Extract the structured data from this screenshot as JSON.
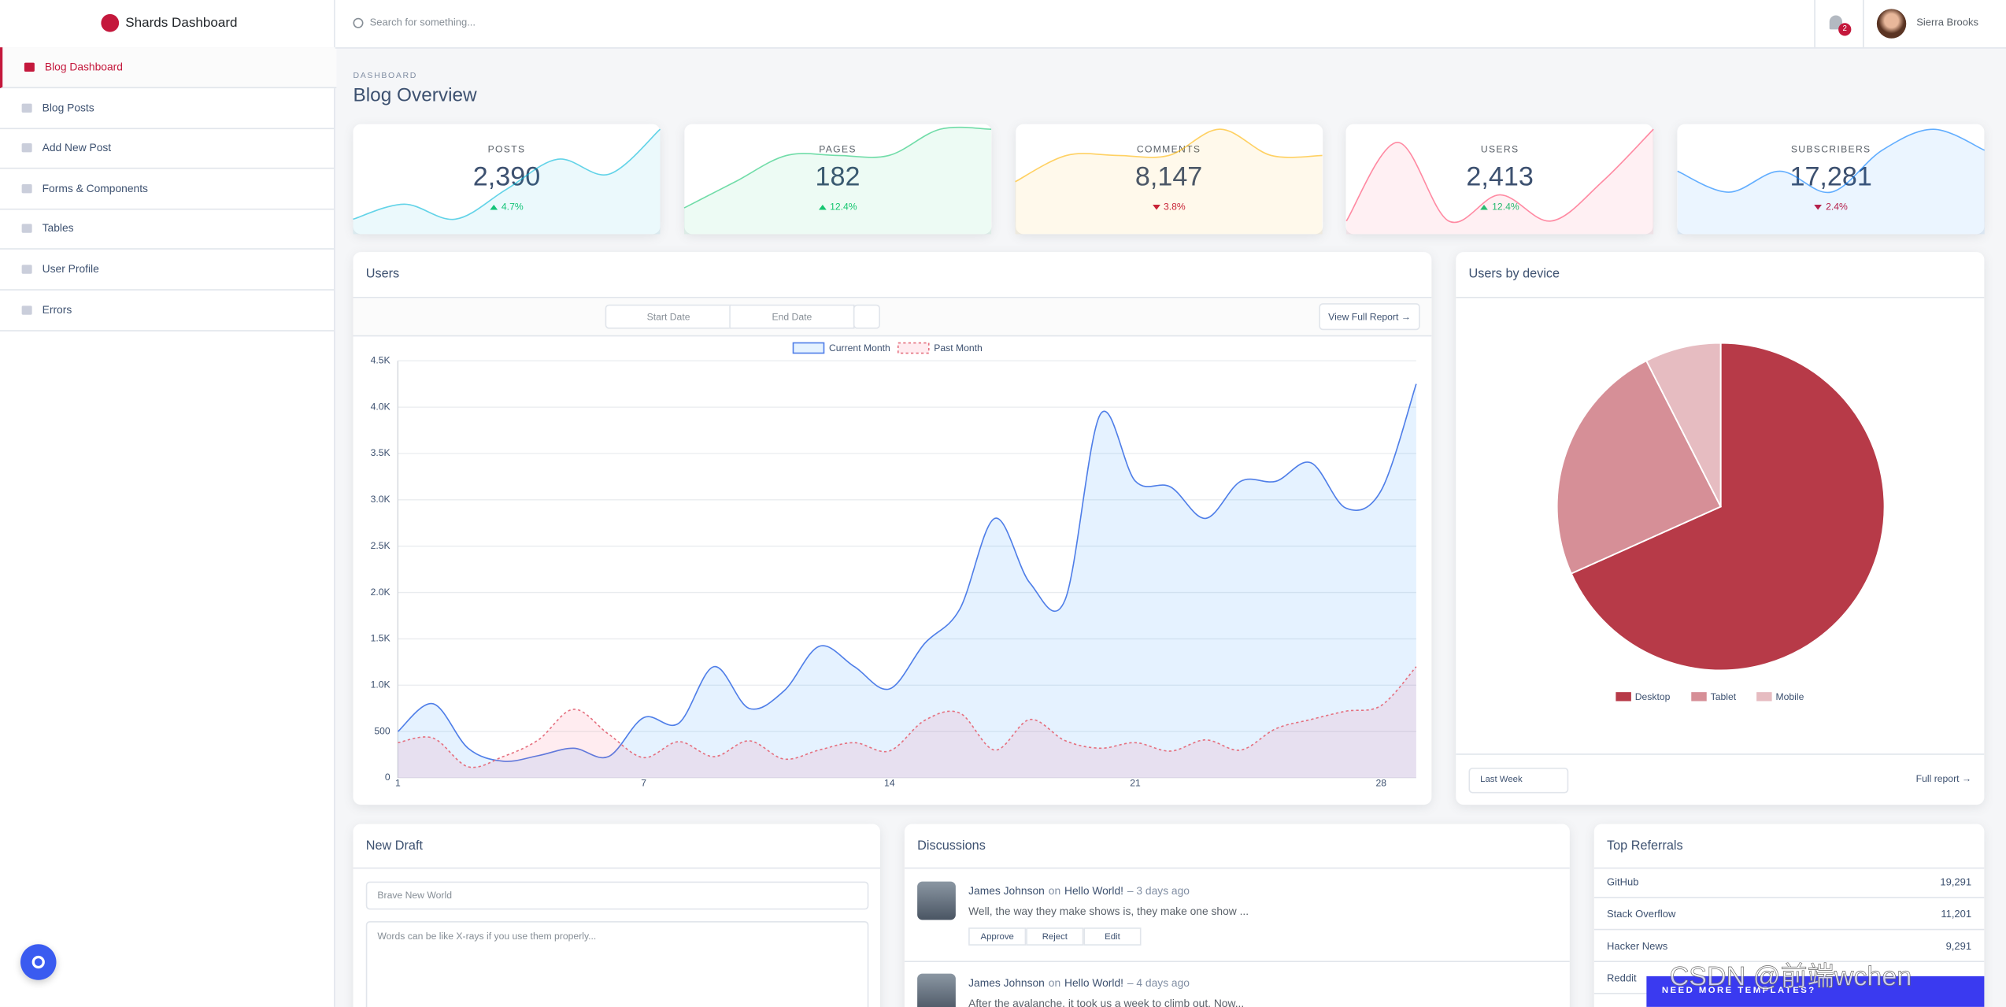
{
  "sidebar": {
    "brand": "Shards Dashboard",
    "items": [
      "Blog Dashboard",
      "Blog Posts",
      "Add New Post",
      "Forms & Components",
      "Tables",
      "User Profile",
      "Errors"
    ],
    "active": 0
  },
  "header": {
    "search_placeholder": "Search for something...",
    "notification_count": "2",
    "user_name": "Sierra Brooks"
  },
  "page": {
    "subtitle": "DASHBOARD",
    "title": "Blog Overview"
  },
  "stats": [
    {
      "label": "POSTS",
      "value": "2,390",
      "change": "4.7%",
      "direction": "up",
      "color": "#00b8d8",
      "sparkline": [
        1,
        2,
        1,
        3,
        5,
        4,
        7
      ]
    },
    {
      "label": "PAGES",
      "value": "182",
      "change": "12.4%",
      "direction": "up",
      "color": "#17c671",
      "sparkline": [
        1,
        2,
        3,
        3,
        3,
        4,
        4
      ]
    },
    {
      "label": "COMMENTS",
      "value": "8,147",
      "change": "3.8%",
      "direction": "down",
      "color": "#ffb400",
      "sparkline": [
        2,
        3,
        3,
        3,
        4,
        3,
        3
      ]
    },
    {
      "label": "USERS",
      "value": "2,413",
      "change": "12.4%",
      "direction": "up",
      "color": "#ff4169",
      "sparkline": [
        1,
        7,
        1,
        3,
        1,
        4,
        8
      ]
    },
    {
      "label": "SUBSCRIBERS",
      "value": "17,281",
      "change": "2.4%",
      "direction": "down",
      "color": "#007bff",
      "sparkline": [
        3,
        2,
        3,
        2,
        4,
        5,
        4
      ]
    }
  ],
  "users_chart": {
    "title": "Users",
    "start_date": "Start Date",
    "end_date": "End Date",
    "report_button": "View Full Report →",
    "chart_data": {
      "type": "line",
      "categories": [
        "1",
        null,
        null,
        null,
        null,
        null,
        null,
        "7",
        null,
        null,
        null,
        null,
        null,
        null,
        "14",
        null,
        null,
        null,
        null,
        null,
        null,
        "21",
        null,
        null,
        null,
        null,
        null,
        null,
        "28",
        null
      ],
      "series": [
        {
          "name": "Current Month",
          "color": "#4f7ee8",
          "fill": "rgba(0,123,255,0.1)",
          "dashed": false,
          "values": [
            500,
            800,
            320,
            180,
            240,
            320,
            230,
            650,
            590,
            1200,
            750,
            940,
            1420,
            1200,
            960,
            1450,
            1820,
            2800,
            2102,
            1920,
            3920,
            3202,
            3140,
            2800,
            3200,
            3200,
            3400,
            2910,
            3100,
            4250
          ]
        },
        {
          "name": "Past Month",
          "color": "#e5707f",
          "fill": "rgba(255,65,105,0.1)",
          "dashed": true,
          "values": [
            380,
            430,
            120,
            230,
            410,
            740,
            472,
            219,
            391,
            229,
            400,
            203,
            301,
            380,
            291,
            620,
            700,
            300,
            630,
            402,
            320,
            380,
            289,
            410,
            300,
            530,
            630,
            720,
            780,
            1200
          ]
        }
      ],
      "ylim": [
        0,
        4500
      ],
      "yticks": [
        0,
        500,
        {
          "value": 1000,
          "label": "1.0K"
        },
        {
          "value": 1500,
          "label": "1.5K"
        },
        {
          "value": 2000,
          "label": "2.0K"
        },
        {
          "value": 2500,
          "label": "2.5K"
        },
        {
          "value": 3000,
          "label": "3.0K"
        },
        {
          "value": 3500,
          "label": "3.5K"
        },
        {
          "value": 4000,
          "label": "4.0K"
        },
        {
          "value": 4500,
          "label": "4.5K"
        }
      ],
      "grid": true,
      "legend": "top"
    }
  },
  "device_chart": {
    "title": "Users by device",
    "period": "Last Week",
    "report_link": "Full report →",
    "chart_data": {
      "type": "pie",
      "categories": [
        "Desktop",
        "Tablet",
        "Mobile"
      ],
      "values": [
        68.3,
        24.2,
        7.5
      ],
      "colors": [
        "#b73a48",
        "#d68f97",
        "#e6bcc1"
      ],
      "legend": "bottom"
    }
  },
  "new_draft": {
    "title": "New Draft",
    "title_placeholder": "Brave New World",
    "body_placeholder": "Words can be like X-rays if you use them properly..."
  },
  "discussions": {
    "title": "Discussions",
    "items": [
      {
        "author": "James Johnson",
        "on": "on",
        "post": "Hello World!",
        "time": "– 3 days ago",
        "text": "Well, the way they make shows is, they make one show ...",
        "actions": [
          "Approve",
          "Reject",
          "Edit"
        ]
      },
      {
        "author": "James Johnson",
        "on": "on",
        "post": "Hello World!",
        "time": "– 4 days ago",
        "text": "After the avalanche, it took us a week to climb out. Now..."
      }
    ]
  },
  "referrals": {
    "title": "Top Referrals",
    "items": [
      {
        "name": "GitHub",
        "count": "19,291"
      },
      {
        "name": "Stack Overflow",
        "count": "11,201"
      },
      {
        "name": "Hacker News",
        "count": "9,291"
      },
      {
        "name": "Reddit"
      }
    ]
  },
  "banner": "NEED MORE TEMPLATES?",
  "watermark": "CSDN @前端wchen"
}
